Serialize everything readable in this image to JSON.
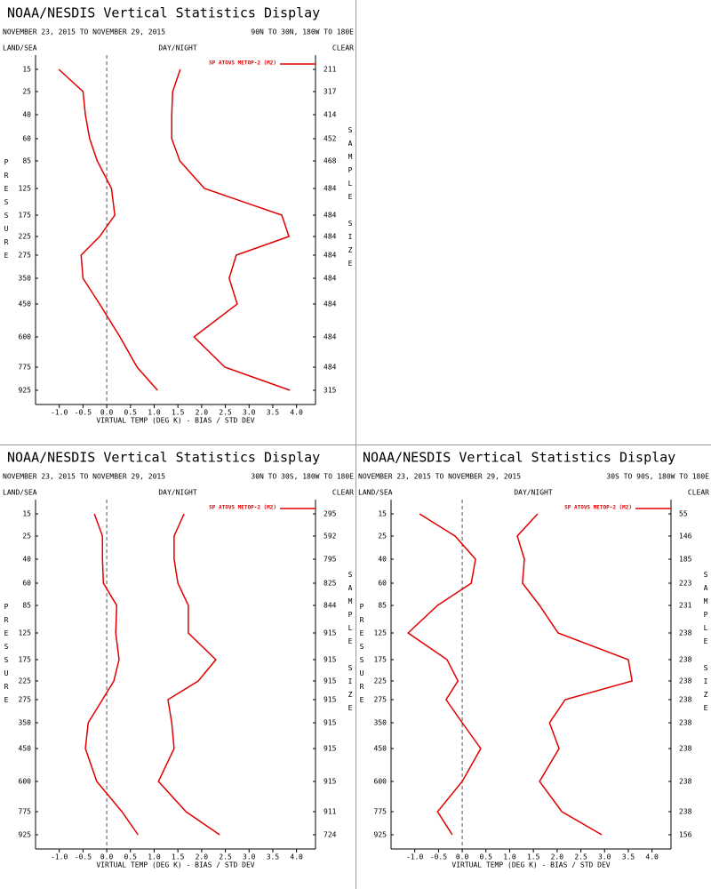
{
  "chart_data": [
    {
      "type": "line",
      "title": "NOAA/NESDIS Vertical Statistics Display",
      "subtitle": "NOVEMBER 23, 2015 TO NOVEMBER 29, 2015",
      "region": "90N TO 30N, 180W TO 180E",
      "left_label": "LAND/SEA",
      "center_label": "DAY/NIGHT",
      "right_label": "CLEAR",
      "y_label": "PRESSURE",
      "y2_label": "SAMPLE SIZE",
      "x_label": "VIRTUAL TEMP (DEG K) - BIAS / STD DEV",
      "zero_line": true,
      "categories": [
        "15",
        "25",
        "40",
        "60",
        "85",
        "125",
        "175",
        "225",
        "275",
        "350",
        "450",
        "600",
        "775",
        "925"
      ],
      "sample_size": [
        "211",
        "317",
        "414",
        "452",
        "468",
        "484",
        "484",
        "484",
        "484",
        "484",
        "484",
        "484",
        "484",
        "315"
      ],
      "series": [
        {
          "name": "SP ATOVS METOP-2 (M2)",
          "color": "#e00000",
          "values": [
            -1.01,
            -0.5,
            -0.45,
            -0.36,
            -0.2,
            0.1,
            0.17,
            -0.15,
            -0.54,
            -0.5,
            -0.15,
            0.28,
            0.64,
            1.07
          ]
        },
        {
          "color": "#e00000",
          "values": [
            1.55,
            1.39,
            1.37,
            1.37,
            1.54,
            2.06,
            3.69,
            3.84,
            2.73,
            2.58,
            2.75,
            1.84,
            2.49,
            3.86
          ]
        }
      ],
      "xlim": [
        -1.5,
        4.4
      ],
      "xticks": [
        {
          "value": -1,
          "label": "-1.0"
        },
        {
          "value": -0.5,
          "label": "-0.5"
        },
        {
          "value": 0,
          "label": "0.0"
        },
        {
          "value": 0.5,
          "label": "0.5"
        },
        {
          "value": 1,
          "label": "1.0"
        },
        {
          "value": 1.5,
          "label": "1.5"
        },
        {
          "value": 2,
          "label": "2.0"
        },
        {
          "value": 2.5,
          "label": "2.5"
        },
        {
          "value": 3,
          "label": "3.0"
        },
        {
          "value": 3.5,
          "label": "3.5"
        },
        {
          "value": 4,
          "label": "4.0"
        }
      ]
    },
    {
      "type": "line",
      "title": "NOAA/NESDIS Vertical Statistics Display",
      "subtitle": "NOVEMBER 23, 2015 TO NOVEMBER 29, 2015",
      "region": "30N TO 30S, 180W TO 180E",
      "left_label": "LAND/SEA",
      "center_label": "DAY/NIGHT",
      "right_label": "CLEAR",
      "y_label": "PRESSURE",
      "y2_label": "SAMPLE SIZE",
      "x_label": "VIRTUAL TEMP (DEG K) - BIAS / STD DEV",
      "zero_line": true,
      "categories": [
        "15",
        "25",
        "40",
        "60",
        "85",
        "125",
        "175",
        "225",
        "275",
        "350",
        "450",
        "600",
        "775",
        "925"
      ],
      "sample_size": [
        "295",
        "592",
        "795",
        "825",
        "844",
        "915",
        "915",
        "915",
        "915",
        "915",
        "915",
        "915",
        "911",
        "724"
      ],
      "series": [
        {
          "name": "SP ATOVS METOP-2 (M2)",
          "color": "#e00000",
          "values": [
            -0.26,
            -0.09,
            -0.09,
            -0.07,
            0.21,
            0.19,
            0.26,
            0.15,
            -0.09,
            -0.39,
            -0.45,
            -0.21,
            0.32,
            0.66
          ]
        },
        {
          "color": "#e00000",
          "values": [
            1.63,
            1.42,
            1.42,
            1.5,
            1.72,
            1.72,
            2.3,
            1.93,
            1.29,
            1.37,
            1.42,
            1.09,
            1.67,
            2.38
          ]
        }
      ],
      "xlim": [
        -1.5,
        4.4
      ],
      "xticks": [
        {
          "value": -1,
          "label": "-1.0"
        },
        {
          "value": -0.5,
          "label": "-0.5"
        },
        {
          "value": 0,
          "label": "0.0"
        },
        {
          "value": 0.5,
          "label": "0.5"
        },
        {
          "value": 1,
          "label": "1.0"
        },
        {
          "value": 1.5,
          "label": "1.5"
        },
        {
          "value": 2,
          "label": "2.0"
        },
        {
          "value": 2.5,
          "label": "2.5"
        },
        {
          "value": 3,
          "label": "3.0"
        },
        {
          "value": 3.5,
          "label": "3.5"
        },
        {
          "value": 4,
          "label": "4.0"
        }
      ]
    },
    {
      "type": "line",
      "title": "NOAA/NESDIS Vertical Statistics Display",
      "subtitle": "NOVEMBER 23, 2015 TO NOVEMBER 29, 2015",
      "region": "30S TO 90S, 180W TO 180E",
      "left_label": "LAND/SEA",
      "center_label": "DAY/NIGHT",
      "right_label": "CLEAR",
      "y_label": "PRESSURE",
      "y2_label": "SAMPLE SIZE",
      "x_label": "VIRTUAL TEMP (DEG K) - BIAS / STD DEV",
      "zero_line": true,
      "categories": [
        "15",
        "25",
        "40",
        "60",
        "85",
        "125",
        "175",
        "225",
        "275",
        "350",
        "450",
        "600",
        "775",
        "925"
      ],
      "sample_size": [
        "55",
        "146",
        "185",
        "223",
        "231",
        "238",
        "238",
        "238",
        "238",
        "238",
        "238",
        "238",
        "238",
        "156"
      ],
      "series": [
        {
          "name": "SP ATOVS METOP-2 (M2)",
          "color": "#e00000",
          "values": [
            -0.9,
            -0.15,
            0.28,
            0.19,
            -0.52,
            -1.14,
            -0.32,
            -0.09,
            -0.34,
            0,
            0.39,
            0,
            -0.52,
            -0.21
          ]
        },
        {
          "color": "#e00000",
          "values": [
            1.59,
            1.16,
            1.31,
            1.27,
            1.63,
            2.02,
            3.5,
            3.58,
            2.17,
            1.84,
            2.04,
            1.63,
            2.1,
            2.94
          ]
        }
      ],
      "xlim": [
        -1.5,
        4.4
      ],
      "xticks": [
        {
          "value": -1,
          "label": "-1.0"
        },
        {
          "value": -0.5,
          "label": "-0.5"
        },
        {
          "value": 0,
          "label": "0.0"
        },
        {
          "value": 0.5,
          "label": "0.5"
        },
        {
          "value": 1,
          "label": "1.0"
        },
        {
          "value": 1.5,
          "label": "1.5"
        },
        {
          "value": 2,
          "label": "2.0"
        },
        {
          "value": 2.5,
          "label": "2.5"
        },
        {
          "value": 3,
          "label": "3.0"
        },
        {
          "value": 3.5,
          "label": "3.5"
        },
        {
          "value": 4,
          "label": "4.0"
        }
      ]
    }
  ]
}
